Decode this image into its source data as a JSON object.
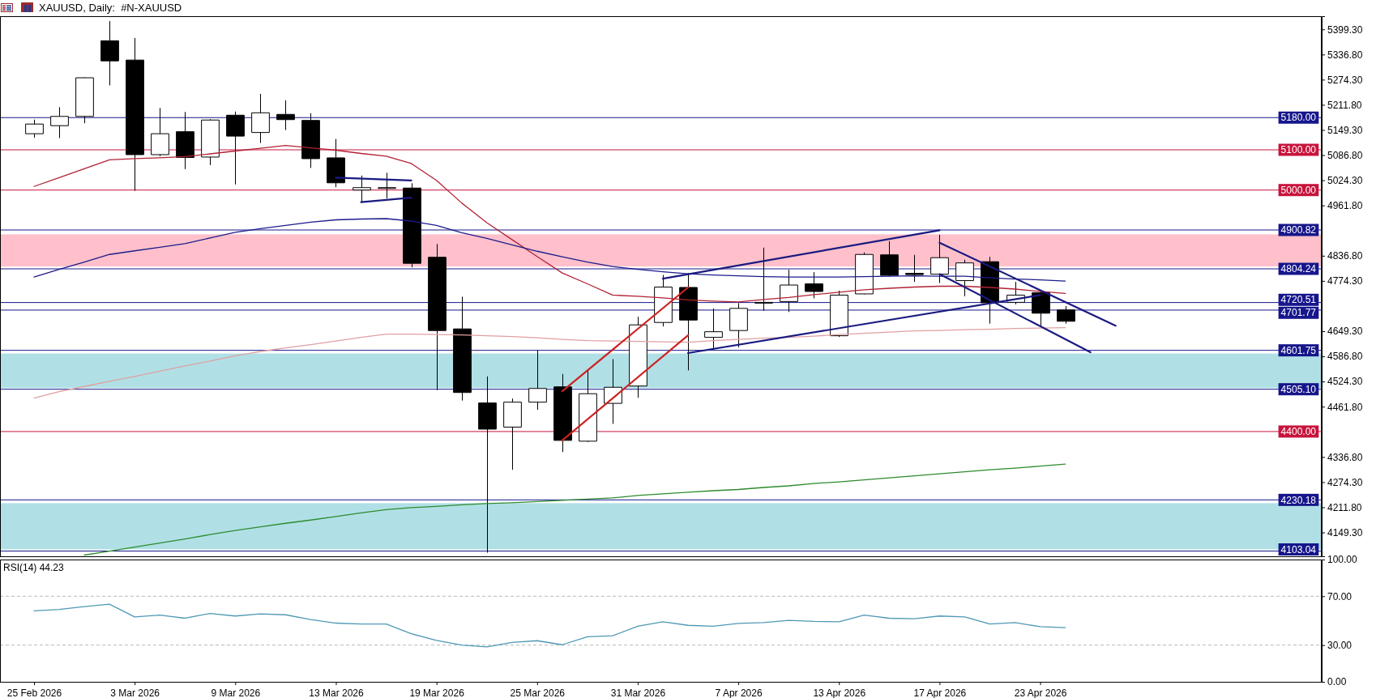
{
  "chart_data": [
    {
      "type": "candlestick",
      "title": "XAUUSD, Daily:  #N-XAUUSD",
      "categories": [
        null,
        null,
        null,
        null,
        null,
        null,
        null,
        null,
        null,
        null,
        null,
        null,
        null,
        null,
        null,
        null,
        null,
        null,
        null,
        null,
        null,
        null,
        null,
        null,
        null,
        null,
        null,
        null,
        null,
        null,
        null,
        null,
        null,
        null,
        null,
        null,
        null,
        null,
        null,
        null,
        null,
        null,
        null,
        null,
        null,
        null,
        null,
        null,
        null,
        null,
        null,
        null
      ],
      "ohlc": [
        [
          5140,
          5175,
          5130,
          5164
        ],
        [
          5160,
          5206,
          5129,
          5183
        ],
        [
          5183,
          5280,
          5166,
          5279
        ],
        [
          5371,
          5420,
          5260,
          5321
        ],
        [
          5323,
          5378,
          4998,
          5088
        ],
        [
          5088,
          5204,
          5084,
          5140
        ],
        [
          5145,
          5194,
          5052,
          5081
        ],
        [
          5082,
          5176,
          5062,
          5174
        ],
        [
          5186,
          5195,
          5014,
          5134
        ],
        [
          5143,
          5239,
          5117,
          5192
        ],
        [
          5188,
          5223,
          5149,
          5175
        ],
        [
          5173,
          5191,
          5055,
          5078
        ],
        [
          5080,
          5127,
          5007,
          5018
        ],
        [
          5000,
          5036,
          4969,
          5006
        ],
        [
          5004,
          5043,
          4979,
          5006
        ],
        [
          5005,
          5017,
          4808,
          4818
        ],
        [
          4833,
          4866,
          4503,
          4651
        ],
        [
          4655,
          4735,
          4477,
          4497
        ],
        [
          4471,
          4537,
          4099,
          4406
        ],
        [
          4411,
          4482,
          4305,
          4473
        ],
        [
          4473,
          4602,
          4454,
          4507
        ],
        [
          4511,
          4543,
          4349,
          4378
        ],
        [
          4376,
          4552,
          4374,
          4494
        ],
        [
          4470,
          4580,
          4419,
          4510
        ],
        [
          4513,
          4685,
          4484,
          4665
        ],
        [
          4671,
          4789,
          4661,
          4759
        ],
        [
          4758,
          4794,
          4552,
          4677
        ],
        [
          4634,
          4706,
          4604,
          4648
        ],
        [
          4651,
          4719,
          4609,
          4706
        ],
        [
          4719,
          4857,
          4700,
          4721
        ],
        [
          4723,
          4802,
          4697,
          4764
        ],
        [
          4767,
          4796,
          4731,
          4748
        ],
        [
          4638,
          4750,
          4635,
          4739
        ],
        [
          4742,
          4845,
          4741,
          4840
        ],
        [
          4839,
          4873,
          4785,
          4788
        ],
        [
          4793,
          4839,
          4772,
          4790
        ],
        [
          4791,
          4889,
          4769,
          4832
        ],
        [
          4775,
          4827,
          4736,
          4819
        ],
        [
          4822,
          4834,
          4668,
          4720
        ],
        [
          4721,
          4772,
          4716,
          4739
        ],
        [
          4745,
          4752,
          4663,
          4694
        ],
        [
          4702,
          4712,
          4668,
          4674
        ],
        null,
        null,
        null,
        null,
        null,
        null,
        null,
        null,
        null,
        null
      ],
      "series": [
        {
          "type": "line",
          "color": "#b22234",
          "values": [
            5009,
            5031,
            5053,
            5075,
            5078,
            5080,
            5083,
            5090,
            5097,
            5104,
            5111,
            5105,
            5099,
            5091,
            5084,
            5066,
            5024,
            4968,
            4919,
            4877,
            4835,
            4794,
            4767,
            4739,
            4736,
            4732,
            4727,
            4724,
            4722,
            4728,
            4733,
            4740,
            4746,
            4752,
            4756,
            4759,
            4761,
            4761,
            4758,
            4754,
            4748,
            4743,
            null,
            null,
            null,
            null,
            null,
            null,
            null,
            null,
            null,
            null
          ]
        },
        {
          "type": "line",
          "color": "#1c1c8c",
          "values": [
            4784,
            4803,
            4821,
            4840,
            4849,
            4858,
            4867,
            4881,
            4895,
            4904,
            4912,
            4920,
            4926,
            4928,
            4929,
            4923,
            4912,
            4894,
            4880,
            4864,
            4848,
            4834,
            4821,
            4810,
            4803,
            4797,
            4792,
            4789,
            4787,
            4785,
            4784,
            4784,
            4784,
            4785,
            4786,
            4787,
            4786,
            4786,
            4782,
            4779,
            4777,
            4774,
            null,
            null,
            null,
            null,
            null,
            null,
            null,
            null,
            null,
            null
          ]
        },
        {
          "type": "line",
          "color": "#e0a0a0",
          "values": [
            4483,
            4499,
            4512,
            4525,
            4537,
            4550,
            4563,
            4575,
            4588,
            4599,
            4608,
            4616,
            4625,
            4634,
            4642,
            4642,
            4641,
            4640,
            4638,
            4636,
            4633,
            4629,
            4626,
            4625,
            4624,
            4623,
            4622,
            4626,
            4629,
            4632,
            4634,
            4637,
            4641,
            4644,
            4647,
            4650,
            4651,
            4653,
            4654,
            4656,
            4657,
            4658,
            null,
            null,
            null,
            null,
            null,
            null,
            null,
            null,
            null,
            null
          ]
        },
        {
          "type": "line",
          "color": "#2e8b2e",
          "values": [
            null,
            null,
            4093,
            4103,
            4113,
            4123,
            4133,
            4144,
            4154,
            4163,
            4172,
            4180,
            4189,
            4198,
            4206,
            4211,
            4214,
            4218,
            4221,
            4223,
            4226,
            4229,
            4232,
            4235,
            4241,
            4245,
            4249,
            4253,
            4256,
            4261,
            4265,
            4271,
            4275,
            4280,
            4285,
            4290,
            4295,
            4300,
            4305,
            4309,
            4314,
            4319,
            null,
            null,
            null,
            null,
            null,
            null,
            null,
            null,
            null,
            null
          ]
        },
        {
          "type": "line",
          "color": "#cc2222",
          "values": [
            null,
            null,
            null,
            null,
            null,
            null,
            null,
            null,
            null,
            null,
            null,
            null,
            null,
            null,
            null,
            null,
            null,
            null,
            null,
            null,
            null,
            4500,
            null,
            null,
            null,
            null,
            4758,
            null,
            null,
            null,
            null,
            null,
            null,
            null,
            null,
            null,
            null,
            null,
            null,
            null,
            null,
            null,
            null,
            null,
            null,
            null,
            null,
            null,
            null,
            null,
            null,
            null
          ]
        },
        {
          "type": "line",
          "color": "#cc2222",
          "values": [
            null,
            null,
            null,
            null,
            null,
            null,
            null,
            null,
            null,
            null,
            null,
            null,
            null,
            null,
            null,
            null,
            null,
            null,
            null,
            null,
            null,
            4378,
            null,
            null,
            null,
            null,
            4639,
            null,
            null,
            null,
            null,
            null,
            null,
            null,
            null,
            null,
            null,
            null,
            null,
            null,
            null,
            null,
            null,
            null,
            null,
            null,
            null,
            null,
            null,
            null,
            null,
            null
          ]
        },
        {
          "type": "line",
          "color": "#1a1a80",
          "values": [
            null,
            null,
            null,
            null,
            null,
            null,
            null,
            null,
            null,
            null,
            null,
            null,
            null,
            null,
            null,
            null,
            null,
            null,
            null,
            null,
            null,
            null,
            null,
            null,
            null,
            4780,
            null,
            null,
            null,
            null,
            null,
            null,
            null,
            null,
            null,
            null,
            4900,
            null,
            null,
            null,
            null,
            null,
            null,
            null,
            null,
            null,
            null,
            null,
            null,
            null,
            null,
            null
          ]
        },
        {
          "type": "line",
          "color": "#1a1a80",
          "values": [
            null,
            null,
            null,
            null,
            null,
            null,
            null,
            null,
            null,
            null,
            null,
            null,
            null,
            null,
            null,
            null,
            null,
            null,
            null,
            null,
            null,
            null,
            null,
            null,
            null,
            null,
            4595,
            null,
            null,
            null,
            null,
            null,
            null,
            null,
            null,
            null,
            null,
            null,
            null,
            null,
            4739,
            null,
            null,
            null,
            null,
            null,
            null,
            null,
            null,
            null,
            null,
            null
          ]
        },
        {
          "type": "line",
          "color": "#1a1a80",
          "values": [
            null,
            null,
            null,
            null,
            null,
            null,
            null,
            null,
            null,
            null,
            null,
            null,
            null,
            null,
            null,
            null,
            null,
            null,
            null,
            null,
            null,
            null,
            null,
            null,
            null,
            null,
            null,
            null,
            null,
            null,
            null,
            null,
            null,
            null,
            null,
            null,
            4869,
            null,
            null,
            null,
            null,
            null,
            null,
            4663,
            null,
            null,
            null,
            null,
            null,
            null,
            null,
            null
          ]
        },
        {
          "type": "line",
          "color": "#1a1a80",
          "values": [
            null,
            null,
            null,
            null,
            null,
            null,
            null,
            null,
            null,
            null,
            null,
            null,
            null,
            null,
            null,
            null,
            null,
            null,
            null,
            null,
            null,
            null,
            null,
            null,
            null,
            null,
            null,
            null,
            null,
            null,
            null,
            null,
            null,
            null,
            null,
            null,
            4791,
            null,
            null,
            null,
            null,
            null,
            4597,
            null,
            null,
            null,
            null,
            null,
            null,
            null,
            null,
            null
          ]
        },
        {
          "type": "line",
          "color": "#1a1a80",
          "values": [
            null,
            null,
            null,
            null,
            null,
            null,
            null,
            null,
            null,
            null,
            null,
            null,
            5031,
            null,
            null,
            5024,
            null,
            null,
            null,
            null,
            null,
            null,
            null,
            null,
            null,
            null,
            null,
            null,
            null,
            null,
            null,
            null,
            null,
            null,
            null,
            null,
            null,
            null,
            null,
            null,
            null,
            null,
            null,
            null,
            null,
            null,
            null,
            null,
            null,
            null,
            null,
            null
          ]
        },
        {
          "type": "line",
          "color": "#1a1a80",
          "values": [
            null,
            null,
            null,
            null,
            null,
            null,
            null,
            null,
            null,
            null,
            null,
            null,
            null,
            4970,
            null,
            4981,
            null,
            null,
            null,
            null,
            null,
            null,
            null,
            null,
            null,
            null,
            null,
            null,
            null,
            null,
            null,
            null,
            null,
            null,
            null,
            null,
            null,
            null,
            null,
            null,
            null,
            null,
            null,
            null,
            null,
            null,
            null,
            null,
            null,
            null,
            null,
            null
          ]
        }
      ],
      "ylim": [
        4090,
        5432
      ],
      "yticks": [
        {
          "value": 5399.3,
          "label": "5399.30"
        },
        {
          "value": 5336.8,
          "label": "5336.80"
        },
        {
          "value": 5274.3,
          "label": "5274.30"
        },
        {
          "value": 5211.8,
          "label": "5211.80"
        },
        {
          "value": 5149.3,
          "label": "5149.30"
        },
        {
          "value": 5086.8,
          "label": "5086.80"
        },
        {
          "value": 5024.3,
          "label": "5024.30"
        },
        {
          "value": 4961.8,
          "label": "4961.80"
        },
        {
          "value": 4836.8,
          "label": "4836.80"
        },
        {
          "value": 4774.3,
          "label": "4774.30"
        },
        {
          "value": 4649.3,
          "label": "4649.30"
        },
        {
          "value": 4586.8,
          "label": "4586.80"
        },
        {
          "value": 4524.3,
          "label": "4524.30"
        },
        {
          "value": 4461.8,
          "label": "4461.80"
        },
        {
          "value": 4336.8,
          "label": "4336.80"
        },
        {
          "value": 4274.3,
          "label": "4274.30"
        },
        {
          "value": 4211.8,
          "label": "4211.80"
        },
        {
          "value": 4149.3,
          "label": "4149.30"
        }
      ],
      "tick_labels": "y",
      "ref_lines": [
        {
          "axis": "y",
          "value": 5180,
          "label": "5180.00",
          "color": "#16168c"
        },
        {
          "axis": "y",
          "value": 5100,
          "label": "5100.00",
          "color": "#c8143c"
        },
        {
          "axis": "y",
          "value": 5000,
          "label": "5000.00",
          "color": "#c8143c"
        },
        {
          "axis": "y",
          "value": 4900.82,
          "label": "4900.82",
          "color": "#16168c"
        },
        {
          "axis": "y",
          "value": 4804.24,
          "label": "4804.24",
          "color": "#16168c"
        },
        {
          "axis": "y",
          "value": 4720.51,
          "label": "4720.51",
          "color": "#16168c"
        },
        {
          "axis": "y",
          "value": 4701.77,
          "label": "4701.77",
          "color": "#16168c"
        },
        {
          "axis": "y",
          "value": 4601.75,
          "label": "4601.75",
          "color": "#16168c"
        },
        {
          "axis": "y",
          "value": 4505.1,
          "label": "4505.10",
          "color": "#16168c"
        },
        {
          "axis": "y",
          "value": 4400,
          "label": "4400.00",
          "color": "#c8143c"
        },
        {
          "axis": "y",
          "value": 4230.18,
          "label": "4230.18",
          "color": "#16168c"
        },
        {
          "axis": "y",
          "value": 4103.04,
          "label": "4103.04",
          "color": "#16168c"
        }
      ],
      "bands": [
        {
          "axis": "y",
          "from": 4810,
          "to": 4890,
          "color": "#ffc0cb"
        },
        {
          "axis": "y",
          "from": 4508,
          "to": 4594,
          "color": "#b0e0e6"
        },
        {
          "axis": "y",
          "from": 4107,
          "to": 4222,
          "color": "#b0e0e6"
        }
      ]
    },
    {
      "type": "line",
      "title": "RSI(14) 44.23",
      "categories": [
        "25 Feb 2026",
        null,
        null,
        null,
        "3 Mar 2026",
        null,
        null,
        null,
        "9 Mar 2026",
        null,
        null,
        null,
        "13 Mar 2026",
        null,
        null,
        null,
        "19 Mar 2026",
        null,
        null,
        null,
        "25 Mar 2026",
        null,
        null,
        null,
        "31 Mar 2026",
        null,
        null,
        null,
        "7 Apr 2026",
        null,
        null,
        null,
        "13 Apr 2026",
        null,
        null,
        null,
        "17 Apr 2026",
        null,
        null,
        null,
        "23 Apr 2026",
        null,
        null,
        null,
        null,
        null,
        null,
        null,
        null,
        null,
        null,
        null
      ],
      "values": [
        58,
        59.2,
        61.5,
        63.5,
        53.1,
        54.5,
        52,
        55.9,
        53.8,
        55.5,
        54.8,
        50.9,
        48,
        47.3,
        47.3,
        39.3,
        33.9,
        30,
        28.6,
        32.2,
        33.6,
        30.3,
        36.8,
        37.6,
        45.5,
        49.1,
        46.2,
        45.5,
        47.7,
        48.4,
        50.2,
        49.4,
        49.1,
        54.5,
        52,
        51.6,
        53.8,
        53.1,
        47.3,
        48.4,
        45.1,
        44.23,
        null,
        null,
        null,
        null,
        null,
        null,
        null,
        null,
        null,
        null
      ],
      "color": "#4f98b5",
      "ylim": [
        0,
        100
      ],
      "yticks": [
        {
          "value": 0,
          "label": "0.00"
        },
        {
          "value": 30,
          "label": "30.00"
        },
        {
          "value": 70,
          "label": "70.00"
        },
        {
          "value": 100,
          "label": "100.00"
        }
      ],
      "ref_lines": [
        {
          "axis": "y",
          "value": 30,
          "color": "#b8b8b8",
          "line_style": "dashed"
        },
        {
          "axis": "y",
          "value": 70,
          "color": "#b8b8b8",
          "line_style": "dashed"
        }
      ]
    }
  ]
}
